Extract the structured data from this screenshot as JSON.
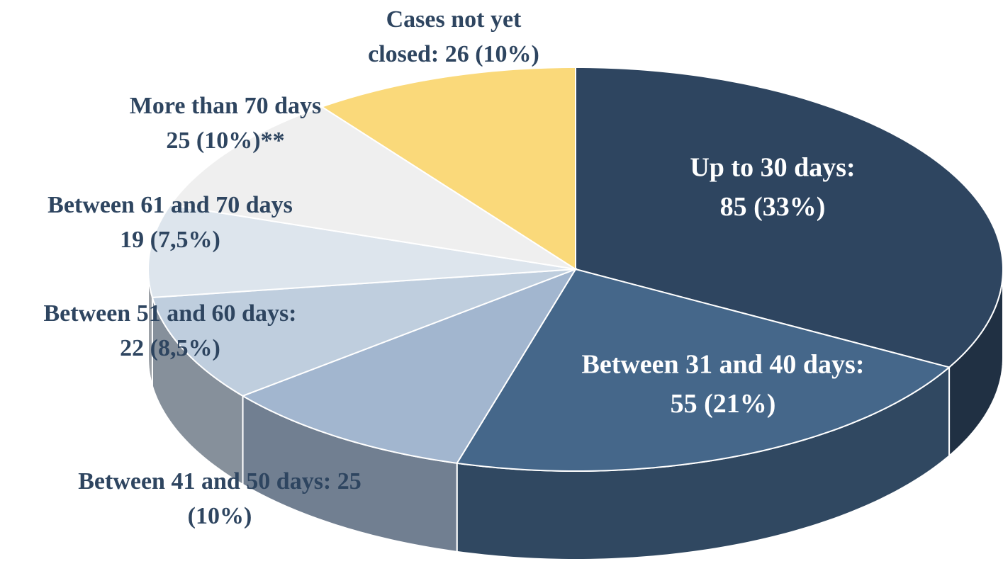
{
  "chart_data": {
    "type": "pie",
    "values": [
      85,
      55,
      25,
      22,
      19,
      25,
      26
    ],
    "labels": [
      [
        "Up to 30 days:",
        "85 (33%)"
      ],
      [
        "Between 31 and 40 days:",
        "55 (21%)"
      ],
      [
        "Between 41 and 50 days: 25",
        "(10%)"
      ],
      [
        "Between 51 and 60 days:",
        "22 (8,5%)"
      ],
      [
        "Between 61 and 70 days",
        "19 (7,5%)"
      ],
      [
        "More than 70 days",
        "25 (10%)**"
      ],
      [
        "Cases not yet",
        "closed: 26 (10%)"
      ]
    ],
    "colors": [
      "#2e4560",
      "#45678a",
      "#a2b6cf",
      "#bfcede",
      "#dde5ed",
      "#efefef",
      "#fad97a"
    ]
  }
}
